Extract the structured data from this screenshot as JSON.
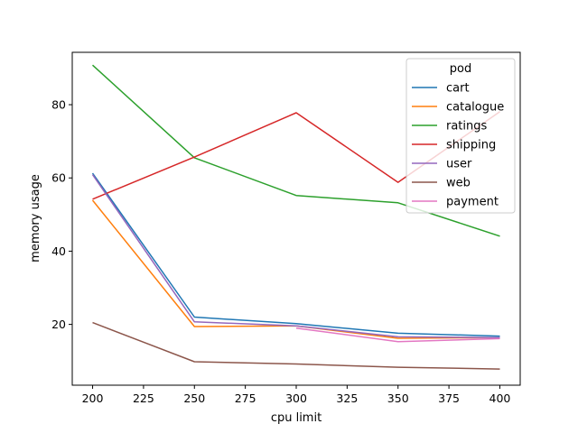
{
  "chart_data": {
    "type": "line",
    "title": "",
    "xlabel": "cpu limit",
    "ylabel": "memory usage",
    "xlim": [
      190,
      410
    ],
    "ylim": [
      3.4,
      94.3
    ],
    "xticks": [
      200,
      225,
      250,
      275,
      300,
      325,
      350,
      375,
      400
    ],
    "yticks": [
      20,
      40,
      60,
      80
    ],
    "grid": false,
    "legend": {
      "title": "pod",
      "placement": "top-right"
    },
    "series": [
      {
        "name": "cart",
        "color": "#1f77b4",
        "x": [
          200,
          250,
          300,
          350,
          400
        ],
        "y": [
          61.3,
          22.0,
          20.2,
          17.6,
          16.8
        ]
      },
      {
        "name": "catalogue",
        "color": "#ff7f0e",
        "x": [
          200,
          250,
          300,
          350,
          400
        ],
        "y": [
          53.9,
          19.4,
          19.6,
          16.2,
          16.4
        ]
      },
      {
        "name": "ratings",
        "color": "#2ca02c",
        "x": [
          200,
          250,
          300,
          350,
          400
        ],
        "y": [
          90.8,
          65.5,
          55.2,
          53.2,
          44.1
        ]
      },
      {
        "name": "shipping",
        "color": "#d62728",
        "x": [
          200,
          250,
          300,
          350,
          400
        ],
        "y": [
          54.2,
          65.7,
          77.8,
          58.8,
          78.1
        ]
      },
      {
        "name": "user",
        "color": "#9467bd",
        "x": [
          200,
          250,
          300,
          350,
          400
        ],
        "y": [
          60.9,
          20.7,
          19.6,
          16.6,
          16.4
        ]
      },
      {
        "name": "web",
        "color": "#8c564b",
        "x": [
          200,
          250,
          300,
          350,
          400
        ],
        "y": [
          20.5,
          9.8,
          9.2,
          8.3,
          7.8
        ]
      },
      {
        "name": "payment",
        "color": "#e377c2",
        "x": [
          300,
          350,
          400
        ],
        "y": [
          19.0,
          15.3,
          16.1
        ]
      }
    ]
  }
}
